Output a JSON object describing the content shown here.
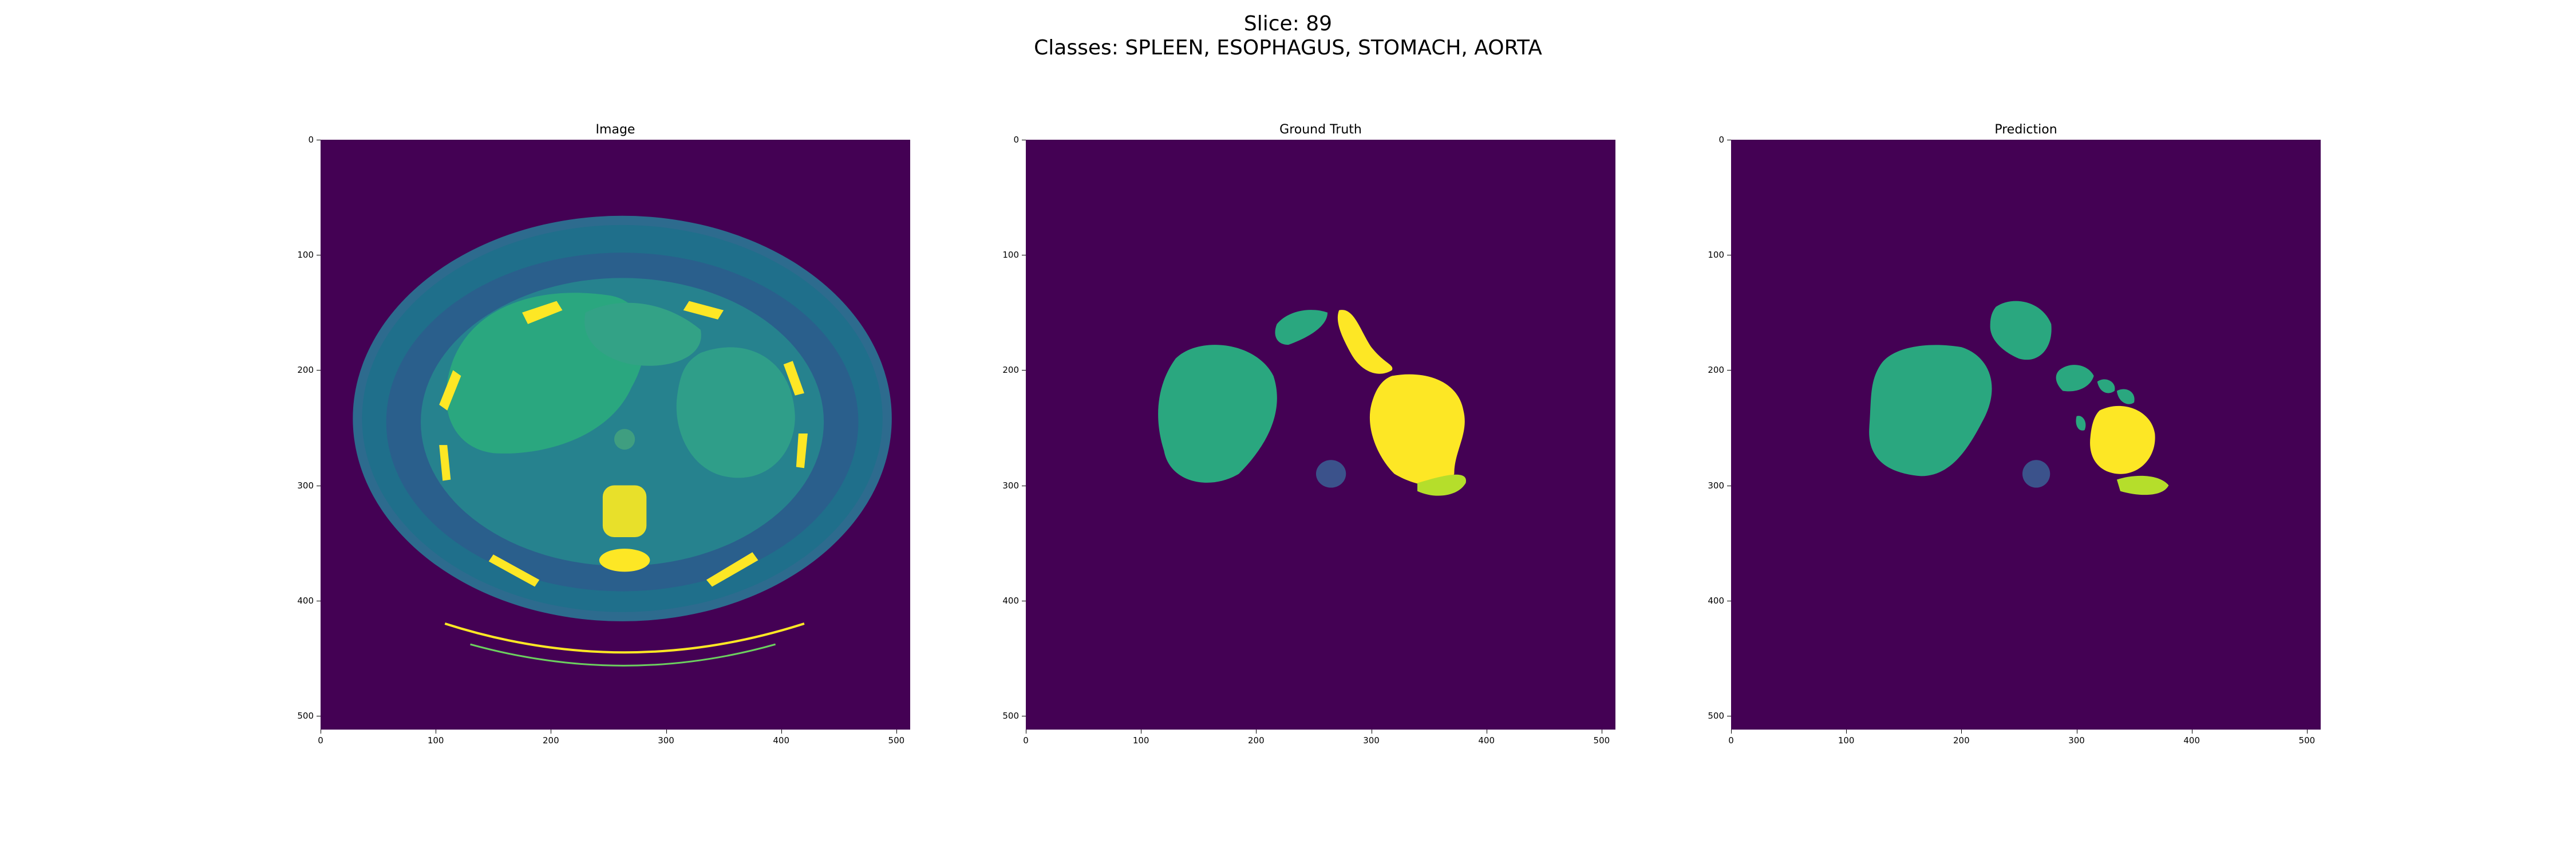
{
  "figure": {
    "title_line1": "Slice: 89",
    "title_line2": "Classes: SPLEEN, ESOPHAGUS, STOMACH, AORTA"
  },
  "panels": [
    {
      "title": "Image"
    },
    {
      "title": "Ground Truth"
    },
    {
      "title": "Prediction"
    }
  ],
  "axes": {
    "x_ticks": [
      "0",
      "100",
      "200",
      "300",
      "400",
      "500"
    ],
    "y_ticks": [
      "0",
      "100",
      "200",
      "300",
      "400",
      "500"
    ],
    "range": [
      0,
      512
    ]
  },
  "colors": {
    "background": "#440154",
    "class_dark": "#3b528b",
    "class_green": "#21918c",
    "class_teal": "#2aa77f",
    "class_lime": "#b5de2b",
    "class_yellow": "#fde725"
  }
}
